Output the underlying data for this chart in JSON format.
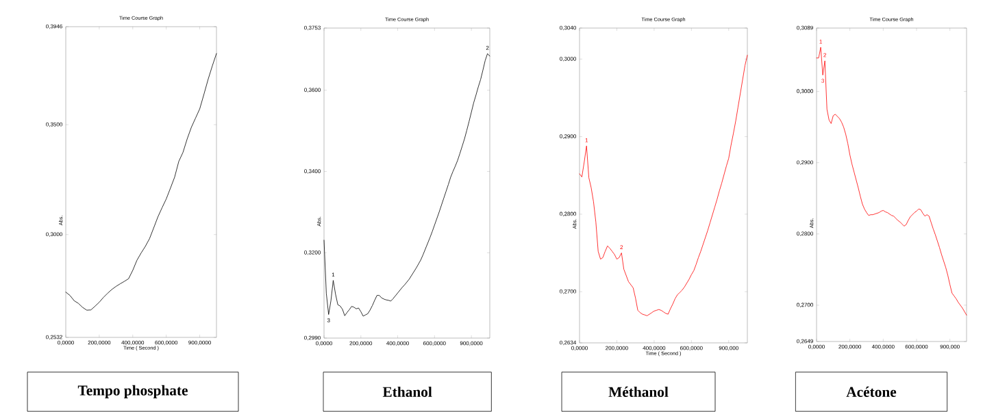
{
  "chart_data": [
    {
      "type": "line",
      "title": "Time Course Graph",
      "xlabel": "Time ( Second )",
      "ylabel": "Abs.",
      "categories": [
        "0,0000",
        null,
        null,
        null,
        null,
        null,
        null,
        null,
        "200,0000",
        null,
        null,
        null,
        null,
        null,
        null,
        null,
        "400,0000",
        null,
        null,
        null,
        null,
        null,
        null,
        null,
        "600,0000",
        null,
        null,
        null,
        null,
        null,
        null,
        null,
        "900,0000",
        null,
        null,
        null,
        null
      ],
      "series": [
        {
          "color": "#000000",
          "values": [
            0.2738,
            0.2723,
            0.2699,
            0.2687,
            0.2669,
            0.2656,
            0.2657,
            0.2674,
            0.2692,
            0.2714,
            0.2733,
            0.275,
            0.2764,
            0.2776,
            0.2787,
            0.2799,
            0.2837,
            0.2883,
            0.2916,
            0.2946,
            0.2981,
            0.303,
            0.308,
            0.3122,
            0.3162,
            0.3211,
            0.3261,
            0.3333,
            0.3374,
            0.3435,
            0.3488,
            0.353,
            0.3572,
            0.3638,
            0.3706,
            0.3767,
            0.3824
          ]
        }
      ],
      "ylim": [
        0.2532,
        0.3946
      ],
      "yticks": [
        {
          "value": 0.2532,
          "label": "0,2532"
        },
        {
          "value": 0.3,
          "label": "0,3000"
        },
        {
          "value": 0.35,
          "label": "0,3500"
        },
        {
          "value": 0.3946,
          "label": "0,3946"
        }
      ],
      "annotations": [
        "Tempo phosphate"
      ]
    },
    {
      "type": "line",
      "title": "Time Course Graph",
      "ylabel": "Abs.",
      "categories": [
        "0,0000",
        null,
        null,
        null,
        null,
        null,
        null,
        null,
        null,
        null,
        null,
        null,
        null,
        null,
        null,
        null,
        "200,0000",
        null,
        null,
        null,
        null,
        null,
        null,
        null,
        null,
        null,
        null,
        null,
        null,
        null,
        null,
        null,
        "400,0000",
        null,
        null,
        null,
        null,
        null,
        null,
        null,
        null,
        null,
        null,
        null,
        null,
        null,
        null,
        null,
        "600,0000",
        null,
        null,
        null,
        null,
        null,
        null,
        null,
        null,
        null,
        null,
        null,
        null,
        null,
        null,
        null,
        "900,0000",
        null,
        null,
        null,
        null,
        null,
        null,
        null,
        null
      ],
      "series": [
        {
          "color": "#000000",
          "values": [
            0.3231,
            0.31,
            0.3048,
            0.3082,
            0.3132,
            0.3098,
            0.3072,
            0.3069,
            0.3061,
            0.3045,
            0.3053,
            0.306,
            0.3068,
            0.3066,
            0.3062,
            0.3064,
            0.3055,
            0.3044,
            0.3047,
            0.305,
            0.3059,
            0.307,
            0.3083,
            0.3095,
            0.3095,
            0.3089,
            0.3086,
            0.3084,
            0.3083,
            0.3081,
            0.3087,
            0.3094,
            0.3101,
            0.3108,
            0.3115,
            0.3121,
            0.3128,
            0.3135,
            0.3144,
            0.3153,
            0.3162,
            0.3172,
            0.3182,
            0.3195,
            0.3209,
            0.3223,
            0.3237,
            0.3252,
            0.3268,
            0.3284,
            0.33,
            0.3317,
            0.3334,
            0.3351,
            0.3368,
            0.3386,
            0.34,
            0.3413,
            0.3427,
            0.3444,
            0.3462,
            0.348,
            0.3501,
            0.3523,
            0.3546,
            0.3569,
            0.3588,
            0.3608,
            0.3626,
            0.3649,
            0.3673,
            0.369,
            0.3684
          ]
        }
      ],
      "ylim": [
        0.299,
        0.3753
      ],
      "yticks": [
        {
          "value": 0.299,
          "label": "0,2990"
        },
        {
          "value": 0.32,
          "label": "0,3200"
        },
        {
          "value": 0.34,
          "label": "0,3400"
        },
        {
          "value": 0.36,
          "label": "0,3600"
        },
        {
          "value": 0.3753,
          "label": "0,3753"
        }
      ],
      "annotations": [
        "Ethanol",
        {
          "text": "1",
          "y": 0.3132
        },
        {
          "text": "2",
          "y": 0.369
        },
        {
          "text": "3",
          "y": 0.3048
        }
      ]
    },
    {
      "type": "line",
      "title": "Time Course Graph",
      "xlabel": "Time ( Second )",
      "ylabel": "Abs.",
      "categories": [
        "0,0000",
        null,
        null,
        null,
        null,
        null,
        null,
        null,
        null,
        null,
        null,
        null,
        null,
        null,
        null,
        null,
        "200,0000",
        null,
        null,
        null,
        null,
        null,
        null,
        null,
        null,
        null,
        null,
        null,
        null,
        null,
        null,
        null,
        "400,0000",
        null,
        null,
        null,
        null,
        null,
        null,
        null,
        null,
        null,
        null,
        null,
        null,
        null,
        null,
        null,
        "600,0000",
        null,
        null,
        null,
        null,
        null,
        null,
        null,
        null,
        null,
        null,
        null,
        null,
        null,
        null,
        null,
        "900,000",
        null,
        null,
        null,
        null,
        null,
        null,
        null,
        null
      ],
      "series": [
        {
          "color": "#ff0000",
          "values": [
            0.2852,
            0.2848,
            0.2867,
            0.2888,
            0.2847,
            0.2834,
            0.2816,
            0.279,
            0.2752,
            0.2742,
            0.2744,
            0.2752,
            0.2759,
            0.2756,
            0.2752,
            0.2748,
            0.2742,
            0.2744,
            0.275,
            0.2729,
            0.2721,
            0.2713,
            0.2709,
            0.2705,
            0.2692,
            0.2676,
            0.2673,
            0.2671,
            0.267,
            0.2669,
            0.2671,
            0.2673,
            0.2675,
            0.2676,
            0.2677,
            0.2676,
            0.2674,
            0.2672,
            0.2671,
            0.2678,
            0.2684,
            0.2691,
            0.2696,
            0.2699,
            0.2702,
            0.2706,
            0.2711,
            0.2716,
            0.2722,
            0.2727,
            0.2735,
            0.2744,
            0.2752,
            0.2761,
            0.277,
            0.2779,
            0.2789,
            0.2799,
            0.2809,
            0.2819,
            0.283,
            0.284,
            0.2851,
            0.2862,
            0.2872,
            0.2889,
            0.2904,
            0.292,
            0.2938,
            0.2956,
            0.2974,
            0.2992,
            0.3005
          ]
        }
      ],
      "ylim": [
        0.2634,
        0.304
      ],
      "yticks": [
        {
          "value": 0.2634,
          "label": "0,2634"
        },
        {
          "value": 0.27,
          "label": "0,2700"
        },
        {
          "value": 0.28,
          "label": "0,2800"
        },
        {
          "value": 0.29,
          "label": "0,2900"
        },
        {
          "value": 0.3,
          "label": "0,3000"
        },
        {
          "value": 0.304,
          "label": "0,3040"
        }
      ],
      "annotations": [
        "Méthanol",
        {
          "text": "1",
          "y": 0.2888
        },
        {
          "text": "2",
          "y": 0.275
        }
      ]
    },
    {
      "type": "line",
      "title": "Time Course Graph",
      "ylabel": "Abs.",
      "categories": [
        "0,0000",
        null,
        null,
        null,
        null,
        null,
        null,
        null,
        null,
        null,
        null,
        null,
        null,
        null,
        null,
        null,
        "200,0000",
        null,
        null,
        null,
        null,
        null,
        null,
        null,
        null,
        null,
        null,
        null,
        null,
        null,
        null,
        null,
        "400,0000",
        null,
        null,
        null,
        null,
        null,
        null,
        null,
        null,
        null,
        null,
        null,
        null,
        null,
        null,
        null,
        "600,0000",
        null,
        null,
        null,
        null,
        null,
        null,
        null,
        null,
        null,
        null,
        null,
        null,
        null,
        null,
        null,
        "900,000",
        null,
        null,
        null,
        null,
        null,
        null,
        null,
        null
      ],
      "series": [
        {
          "color": "#ff0000",
          "values": [
            0.3047,
            0.3047,
            0.3062,
            0.3023,
            0.3043,
            0.2975,
            0.296,
            0.2955,
            0.2966,
            0.2968,
            0.2965,
            0.2962,
            0.2957,
            0.295,
            0.294,
            0.2927,
            0.2911,
            0.2898,
            0.2887,
            0.2876,
            0.2865,
            0.2853,
            0.2842,
            0.2835,
            0.283,
            0.2826,
            0.2827,
            0.2827,
            0.2828,
            0.2829,
            0.283,
            0.2832,
            0.2833,
            0.2831,
            0.283,
            0.2828,
            0.2826,
            0.2825,
            0.2822,
            0.2819,
            0.2817,
            0.2814,
            0.2811,
            0.2813,
            0.2819,
            0.2824,
            0.2827,
            0.283,
            0.2832,
            0.2835,
            0.2834,
            0.2829,
            0.2825,
            0.2827,
            0.2825,
            0.2816,
            0.2807,
            0.2799,
            0.279,
            0.2781,
            0.2771,
            0.2762,
            0.2753,
            0.2742,
            0.2729,
            0.2717,
            0.2713,
            0.2709,
            0.2704,
            0.27,
            0.2696,
            0.2691,
            0.2686
          ]
        }
      ],
      "ylim": [
        0.2649,
        0.3089
      ],
      "yticks": [
        {
          "value": 0.2649,
          "label": "0,2649"
        },
        {
          "value": 0.27,
          "label": "0,2700"
        },
        {
          "value": 0.28,
          "label": "0,2800"
        },
        {
          "value": 0.29,
          "label": "0,2900"
        },
        {
          "value": 0.3,
          "label": "0,3000"
        },
        {
          "value": 0.3089,
          "label": "0,3089"
        }
      ],
      "annotations": [
        "Acétone",
        {
          "text": "1",
          "y": 0.3062
        },
        {
          "text": "2",
          "y": 0.3043
        },
        {
          "text": "3",
          "y": 0.3023
        }
      ]
    }
  ]
}
